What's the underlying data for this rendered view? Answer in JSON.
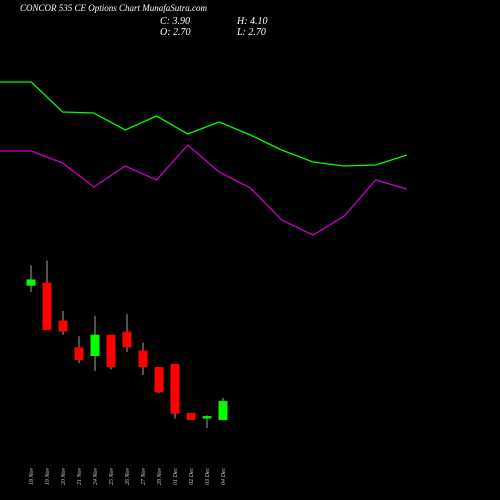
{
  "title": "CONCOR 535 CE Options  Chart MunafaSutra.com",
  "quote": {
    "close": "C: 3.90",
    "high": "H: 4.10",
    "open": "O: 2.70",
    "low": "L: 2.70"
  },
  "chart_data": [
    {
      "type": "line",
      "ylim": [
        0,
        30
      ],
      "series": [
        {
          "color": "#00ff00",
          "values": [
            21.8,
            21.8,
            18.8,
            18.7,
            17,
            18.4,
            16.6,
            17.8,
            16.5,
            15,
            13.8,
            13.4,
            13.5,
            14.5
          ]
        },
        {
          "color": "#cc00cc",
          "values": [
            14.9,
            14.9,
            13.7,
            11.3,
            13.4,
            12,
            15.5,
            12.8,
            11.2,
            8,
            6.5,
            8.4,
            12,
            11.1
          ]
        }
      ]
    },
    {
      "type": "candlestick",
      "ylim": [
        1.5,
        13.5
      ],
      "up_color": "#00ff00",
      "down_color": "#ff0000",
      "categories": [
        "18 Nov",
        "19 Nov",
        "20 Nov",
        "21 Nov",
        "24 Nov",
        "25 Nov",
        "26 Nov",
        "27 Nov",
        "28 Nov",
        "01 Dec",
        "02 Dec",
        "03 Dec",
        "04 Dec"
      ],
      "open": [
        11.2,
        11.4,
        9.0,
        7.3,
        6.75,
        8.1,
        8.3,
        7.1,
        6.05,
        6.25,
        3.15,
        2.8,
        2.7
      ],
      "close": [
        11.6,
        8.4,
        8.3,
        6.5,
        8.1,
        6.05,
        7.3,
        6.05,
        4.45,
        3.1,
        2.7,
        2.95,
        3.9
      ],
      "high": [
        12.5,
        12.8,
        9.6,
        8.0,
        9.3,
        8.1,
        9.4,
        7.6,
        6.05,
        6.25,
        3.15,
        3.0,
        4.1
      ],
      "low": [
        10.8,
        8.4,
        8.1,
        6.3,
        5.8,
        5.9,
        7.0,
        5.55,
        4.4,
        2.8,
        2.7,
        2.2,
        2.7
      ]
    }
  ]
}
